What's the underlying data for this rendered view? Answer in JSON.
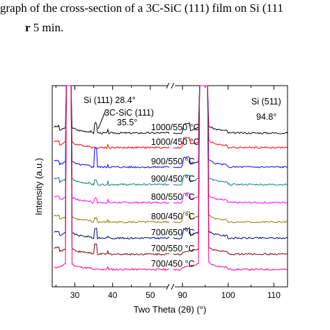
{
  "caption": {
    "line1": "graph of the cross-section of a 3C-SiC (111) film on Si (111",
    "line2_bold": "r",
    "line2_rest": " 5 min."
  },
  "chart_data": {
    "type": "line",
    "xlabel": "Two Theta (2θ) (°)",
    "ylabel": "Intensity (a.u.)",
    "x_break": [
      55,
      88
    ],
    "xlim_left": [
      24,
      55
    ],
    "xlim_right": [
      88,
      113
    ],
    "x_ticks_left": [
      "30",
      "40",
      "50"
    ],
    "x_ticks_right": [
      "90",
      "100",
      "110"
    ],
    "peak_labels": [
      {
        "text": "Si (111)  28.4°"
      },
      {
        "text_line1": "3C-SiC (111)",
        "text_line2": "35.5°"
      },
      {
        "text_line1": "Si (511)",
        "text_line2": "94.8°"
      }
    ],
    "series": [
      {
        "name": "1000/550 °C",
        "color": "#000000"
      },
      {
        "name": "1000/450 °C",
        "color": "#ff0000"
      },
      {
        "name": "900/550 °C",
        "color": "#0000ff"
      },
      {
        "name": "900/450 °C",
        "color": "#008080"
      },
      {
        "name": "800/550 °C",
        "color": "#ff00ff"
      },
      {
        "name": "800/450 °C",
        "color": "#808000"
      },
      {
        "name": "700/650 °C",
        "color": "#000080"
      },
      {
        "name": "700/550 °C",
        "color": "#800000"
      },
      {
        "name": "700/450 °C",
        "color": "#ff0080"
      }
    ]
  }
}
